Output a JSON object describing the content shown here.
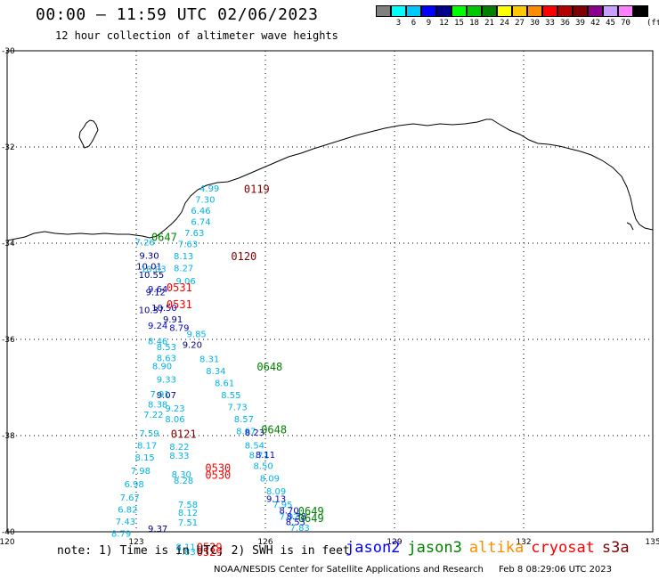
{
  "header": {
    "title": "00:00 – 11:59 UTC 02/06/2023",
    "subtitle": "12 hour collection of altimeter wave heights"
  },
  "legend": {
    "unit": "(ft)",
    "swatches": [
      {
        "color": "#808080",
        "label": ""
      },
      {
        "color": "#00ffff",
        "label": "3"
      },
      {
        "color": "#00c8ff",
        "label": "6"
      },
      {
        "color": "#0000ff",
        "label": "9"
      },
      {
        "color": "#00008b",
        "label": "12"
      },
      {
        "color": "#00ff00",
        "label": "15"
      },
      {
        "color": "#00c800",
        "label": "18"
      },
      {
        "color": "#008000",
        "label": "21"
      },
      {
        "color": "#ffff00",
        "label": "24"
      },
      {
        "color": "#ffc800",
        "label": "27"
      },
      {
        "color": "#ff8c00",
        "label": "30"
      },
      {
        "color": "#ff0000",
        "label": "33"
      },
      {
        "color": "#b40000",
        "label": "36"
      },
      {
        "color": "#800000",
        "label": "39"
      },
      {
        "color": "#8b008b",
        "label": "42"
      },
      {
        "color": "#c8a0ff",
        "label": "45"
      },
      {
        "color": "#ff80ff",
        "label": "70"
      },
      {
        "color": "#000000",
        "label": ""
      }
    ]
  },
  "map": {
    "lon_range": [
      120,
      135
    ],
    "lat_range": [
      -40,
      -30
    ],
    "x_ticks": [
      "120",
      "123",
      "126",
      "129",
      "132",
      "135"
    ],
    "y_ticks": [
      "-30",
      "-32",
      "-34",
      "-36",
      "-38",
      "-40"
    ]
  },
  "colors": {
    "cyan": "#00b4e6",
    "blue": "#0000c8",
    "navy": "#000080",
    "green": "#008000",
    "red": "#ff0000",
    "maroon": "#800000"
  },
  "time_labels": [
    {
      "text": "0119",
      "lon": 125.8,
      "lat": -32.95,
      "color": "maroon"
    },
    {
      "text": "0647",
      "lon": 123.65,
      "lat": -33.95,
      "color": "green"
    },
    {
      "text": "0120",
      "lon": 125.5,
      "lat": -34.35,
      "color": "maroon"
    },
    {
      "text": "0531",
      "lon": 124.0,
      "lat": -35.0,
      "color": "red"
    },
    {
      "text": "0531",
      "lon": 124.0,
      "lat": -35.35,
      "color": "red"
    },
    {
      "text": "0648",
      "lon": 126.1,
      "lat": -36.65,
      "color": "green"
    },
    {
      "text": "0648",
      "lon": 126.2,
      "lat": -37.95,
      "color": "green"
    },
    {
      "text": "0121",
      "lon": 124.1,
      "lat": -38.05,
      "color": "maroon"
    },
    {
      "text": "0530",
      "lon": 124.9,
      "lat": -38.75,
      "color": "red"
    },
    {
      "text": "0530",
      "lon": 124.9,
      "lat": -38.9,
      "color": "red"
    },
    {
      "text": "0649",
      "lon": 127.06,
      "lat": -39.65,
      "color": "green"
    },
    {
      "text": "0649",
      "lon": 127.06,
      "lat": -39.8,
      "color": "green"
    },
    {
      "text": "0529",
      "lon": 124.7,
      "lat": -40.4,
      "color": "red"
    },
    {
      "text": "0529",
      "lon": 124.7,
      "lat": -40.5,
      "color": "red"
    }
  ],
  "tracks": [
    {
      "name": "A",
      "color": "cyan",
      "points": [
        {
          "lon": 124.7,
          "lat": -32.93,
          "v": "4.99"
        },
        {
          "lon": 124.6,
          "lat": -33.16,
          "v": "7.30"
        },
        {
          "lon": 124.5,
          "lat": -33.39,
          "v": "6.46"
        },
        {
          "lon": 124.5,
          "lat": -33.62,
          "v": "6.74"
        },
        {
          "lon": 124.35,
          "lat": -33.85,
          "v": "7.63"
        },
        {
          "lon": 124.2,
          "lat": -34.08,
          "v": "7.63"
        },
        {
          "lon": 124.1,
          "lat": -34.33,
          "v": "8.13"
        },
        {
          "lon": 124.1,
          "lat": -34.58,
          "v": "8.27"
        },
        {
          "lon": 124.15,
          "lat": -34.85,
          "v": "9.06"
        },
        {
          "lon": 124.4,
          "lat": -35.95,
          "v": "9.85"
        },
        {
          "lon": 124.7,
          "lat": -36.47,
          "v": "8.31"
        },
        {
          "lon": 124.85,
          "lat": -36.72,
          "v": "8.34"
        },
        {
          "lon": 125.05,
          "lat": -36.97,
          "v": "8.61"
        },
        {
          "lon": 125.2,
          "lat": -37.22,
          "v": "8.55"
        },
        {
          "lon": 125.35,
          "lat": -37.47,
          "v": "7.73"
        },
        {
          "lon": 125.5,
          "lat": -37.72,
          "v": "8.57"
        },
        {
          "lon": 125.55,
          "lat": -37.97,
          "v": "8.67"
        },
        {
          "lon": 125.75,
          "lat": -38.27,
          "v": "8.54"
        },
        {
          "lon": 125.85,
          "lat": -38.47,
          "v": "8.71"
        },
        {
          "lon": 125.95,
          "lat": -38.69,
          "v": "8.50"
        },
        {
          "lon": 126.1,
          "lat": -38.95,
          "v": "8.09"
        },
        {
          "lon": 126.25,
          "lat": -39.22,
          "v": "8.09"
        },
        {
          "lon": 126.4,
          "lat": -39.5,
          "v": "7.95"
        },
        {
          "lon": 126.55,
          "lat": -39.75,
          "v": "7.92"
        },
        {
          "lon": 126.8,
          "lat": -39.98,
          "v": "7.83"
        }
      ]
    },
    {
      "name": "B",
      "color": "blue",
      "points": [
        {
          "lon": 123.5,
          "lat": -35.02,
          "v": "9.64"
        },
        {
          "lon": 123.65,
          "lat": -35.41,
          "v": "10.50"
        },
        {
          "lon": 123.5,
          "lat": -35.78,
          "v": "9.24"
        },
        {
          "lon": 124.0,
          "lat": -35.82,
          "v": "8.79"
        },
        {
          "lon": 125.75,
          "lat": -38.0,
          "v": "8.23"
        },
        {
          "lon": 126.0,
          "lat": -38.46,
          "v": "8.11"
        },
        {
          "lon": 126.25,
          "lat": -39.38,
          "v": "9.13"
        },
        {
          "lon": 126.55,
          "lat": -39.62,
          "v": "8.70"
        },
        {
          "lon": 126.7,
          "lat": -39.86,
          "v": "8.53"
        },
        {
          "lon": 126.72,
          "lat": -39.74,
          "v": "8.38"
        }
      ]
    },
    {
      "name": "C",
      "color": "navy",
      "points": [
        {
          "lon": 123.3,
          "lat": -34.32,
          "v": "9.30"
        },
        {
          "lon": 123.3,
          "lat": -34.55,
          "v": "10.01"
        },
        {
          "lon": 123.35,
          "lat": -34.72,
          "v": "10.55"
        },
        {
          "lon": 123.45,
          "lat": -35.08,
          "v": "9.12"
        },
        {
          "lon": 123.35,
          "lat": -35.45,
          "v": "10.37"
        },
        {
          "lon": 123.85,
          "lat": -35.65,
          "v": "9.91"
        },
        {
          "lon": 124.3,
          "lat": -36.18,
          "v": "9.20"
        },
        {
          "lon": 123.7,
          "lat": -37.22,
          "v": "9.07"
        },
        {
          "lon": 123.5,
          "lat": -40.0,
          "v": "9.37"
        }
      ]
    },
    {
      "name": "D",
      "color": "cyan",
      "points": [
        {
          "lon": 123.2,
          "lat": -34.05,
          "v": "7.26"
        },
        {
          "lon": 123.4,
          "lat": -34.6,
          "v": "10.03"
        },
        {
          "lon": 123.5,
          "lat": -36.1,
          "v": "8.46"
        },
        {
          "lon": 123.6,
          "lat": -36.62,
          "v": "8.90"
        },
        {
          "lon": 123.7,
          "lat": -36.9,
          "v": "9.33"
        },
        {
          "lon": 123.55,
          "lat": -37.2,
          "v": "7.91"
        },
        {
          "lon": 123.5,
          "lat": -37.42,
          "v": "8.38"
        },
        {
          "lon": 123.4,
          "lat": -37.63,
          "v": "7.22"
        },
        {
          "lon": 123.3,
          "lat": -38.02,
          "v": "7.59"
        },
        {
          "lon": 123.25,
          "lat": -38.27,
          "v": "8.17"
        },
        {
          "lon": 123.2,
          "lat": -38.52,
          "v": "8.15"
        },
        {
          "lon": 123.1,
          "lat": -38.8,
          "v": "7.98"
        },
        {
          "lon": 122.95,
          "lat": -39.07,
          "v": "6.98"
        },
        {
          "lon": 122.85,
          "lat": -39.35,
          "v": "7.67"
        },
        {
          "lon": 122.8,
          "lat": -39.6,
          "v": "6.82"
        },
        {
          "lon": 122.75,
          "lat": -39.85,
          "v": "7.43"
        },
        {
          "lon": 122.65,
          "lat": -40.1,
          "v": "8.79"
        }
      ]
    },
    {
      "name": "E",
      "color": "cyan",
      "points": [
        {
          "lon": 123.7,
          "lat": -36.22,
          "v": "8.53"
        },
        {
          "lon": 123.7,
          "lat": -36.45,
          "v": "8.63"
        },
        {
          "lon": 123.9,
          "lat": -37.5,
          "v": "9.23"
        },
        {
          "lon": 123.9,
          "lat": -37.72,
          "v": "8.06"
        },
        {
          "lon": 124.0,
          "lat": -38.3,
          "v": "8.22"
        },
        {
          "lon": 124.0,
          "lat": -38.48,
          "v": "8.33"
        },
        {
          "lon": 124.05,
          "lat": -38.87,
          "v": "8.30"
        },
        {
          "lon": 124.1,
          "lat": -39.0,
          "v": "8.28"
        },
        {
          "lon": 124.2,
          "lat": -39.5,
          "v": "7.58"
        },
        {
          "lon": 124.2,
          "lat": -39.67,
          "v": "8.12"
        },
        {
          "lon": 124.2,
          "lat": -39.87,
          "v": "7.51"
        },
        {
          "lon": 124.15,
          "lat": -40.38,
          "v": "8.11"
        },
        {
          "lon": 124.15,
          "lat": -40.48,
          "v": "7.83"
        }
      ]
    }
  ],
  "footer": {
    "note": "note: 1) Time is in UTC; 2) SWH is in feet",
    "satellites": [
      {
        "name": "jason2",
        "color": "#0000ff"
      },
      {
        "name": "jason3",
        "color": "#008000"
      },
      {
        "name": "altika",
        "color": "#ff8c00"
      },
      {
        "name": "cryosat",
        "color": "#ff0000"
      },
      {
        "name": "s3a",
        "color": "#800000"
      }
    ],
    "credit": "NOAA/NESDIS Center for Satellite Applications and Research",
    "timestamp": "Feb  8 08:29:06 UTC 2023"
  }
}
